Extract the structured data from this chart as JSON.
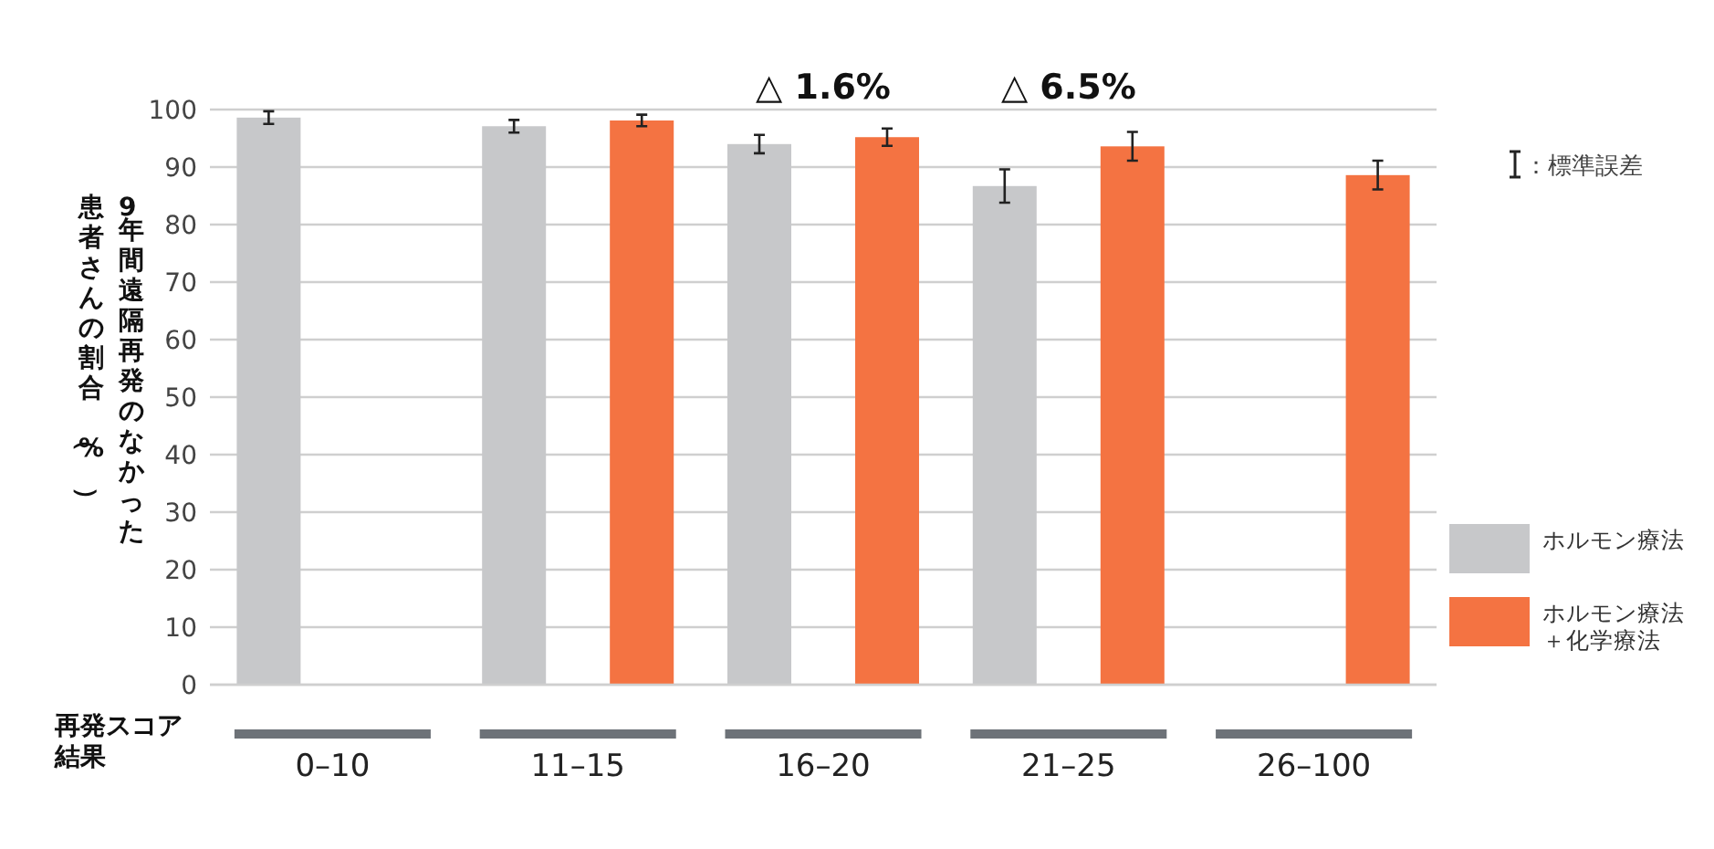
{
  "chart_data": {
    "type": "bar",
    "xlabel": "再発スコア結果",
    "ylabel": "9年間遠隔再発のなかった患者さんの割合（%）",
    "categories": [
      "0–10",
      "11–15",
      "16–20",
      "21–25",
      "26–100"
    ],
    "series": [
      {
        "name": "ホルモン療法",
        "color": "#c7c8ca",
        "values": [
          98.6,
          97.1,
          94.0,
          86.7,
          null
        ],
        "errors": [
          1.1,
          1.1,
          1.6,
          2.9,
          null
        ]
      },
      {
        "name": "ホルモン療法＋化学療法",
        "color": "#f47342",
        "values": [
          null,
          98.1,
          95.2,
          93.6,
          88.6
        ],
        "errors": [
          null,
          1.0,
          1.5,
          2.5,
          2.5
        ]
      }
    ],
    "ylim": [
      0,
      100
    ],
    "yticks": [
      0,
      10,
      20,
      30,
      40,
      50,
      60,
      70,
      80,
      90,
      100
    ],
    "grid": "y",
    "legend": "right",
    "annotations": [
      "△ 1.6%",
      "△ 6.5%",
      "：標準誤差"
    ]
  }
}
